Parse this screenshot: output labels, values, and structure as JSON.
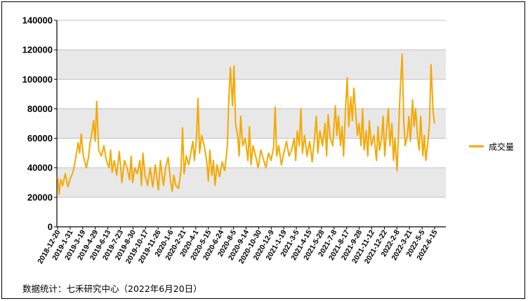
{
  "chart_data": {
    "type": "line",
    "title": "",
    "xlabel": "",
    "ylabel": "",
    "ylim": [
      0,
      140000
    ],
    "y_ticks": [
      "0",
      "20000",
      "40000",
      "60000",
      "80000",
      "100000",
      "120000",
      "140000"
    ],
    "x_tick_labels": [
      "2018-12-20",
      "2019-1-31",
      "2019-3-19",
      "2019-4-29",
      "2019-6-13",
      "2019-7-23",
      "2019-8-30",
      "2019-10-17",
      "2019-11-26",
      "2020-1-6",
      "2020-2-21",
      "2020-4-1",
      "2020-5-15",
      "2020-6-24",
      "2020-8-5",
      "2020-9-14",
      "2020-10-30",
      "2020-12-9",
      "2021-1-19",
      "2021-3-5",
      "2021-4-15",
      "2021-5-28",
      "2021-7-8",
      "2021-8-17",
      "2021-9-28",
      "2021-11-12",
      "2021-12-22",
      "2022-2-8",
      "2022-3-21",
      "2022-5-5",
      "2022-6-15"
    ],
    "grid": "horizontal",
    "background_bands": true,
    "legend_position": "right",
    "series": [
      {
        "name": "成交量",
        "color": "#F5A800",
        "values": [
          [
            0,
            34000
          ],
          [
            0.3,
            22000
          ],
          [
            0.6,
            32000
          ],
          [
            1,
            28000
          ],
          [
            1.5,
            36000
          ],
          [
            2,
            27000
          ],
          [
            2.5,
            33000
          ],
          [
            3,
            37000
          ],
          [
            3.5,
            46000
          ],
          [
            4,
            57000
          ],
          [
            4.3,
            50000
          ],
          [
            4.6,
            63000
          ],
          [
            5,
            48000
          ],
          [
            5.3,
            44000
          ],
          [
            5.6,
            40000
          ],
          [
            6,
            47000
          ],
          [
            6.3,
            57000
          ],
          [
            6.6,
            62000
          ],
          [
            7,
            72000
          ],
          [
            7.3,
            58000
          ],
          [
            7.6,
            85000
          ],
          [
            8,
            52000
          ],
          [
            8.5,
            48000
          ],
          [
            9,
            55000
          ],
          [
            9.5,
            45000
          ],
          [
            10,
            40000
          ],
          [
            10.3,
            52000
          ],
          [
            10.6,
            37000
          ],
          [
            11,
            45000
          ],
          [
            11.5,
            35000
          ],
          [
            12,
            51000
          ],
          [
            12.5,
            30000
          ],
          [
            13,
            45000
          ],
          [
            13.5,
            40000
          ],
          [
            14,
            32000
          ],
          [
            14.3,
            48000
          ],
          [
            14.6,
            30000
          ],
          [
            15,
            40000
          ],
          [
            15.5,
            36000
          ],
          [
            16,
            45000
          ],
          [
            16.3,
            28000
          ],
          [
            16.6,
            50000
          ],
          [
            17,
            35000
          ],
          [
            17.5,
            28000
          ],
          [
            18,
            40000
          ],
          [
            18.5,
            27000
          ],
          [
            19,
            42000
          ],
          [
            19.3,
            33000
          ],
          [
            19.6,
            25000
          ],
          [
            20,
            45000
          ],
          [
            20.3,
            35000
          ],
          [
            20.6,
            28000
          ],
          [
            21,
            40000
          ],
          [
            21.5,
            47000
          ],
          [
            22,
            30000
          ],
          [
            22.3,
            24000
          ],
          [
            22.6,
            35000
          ],
          [
            23,
            28000
          ],
          [
            23.5,
            26000
          ],
          [
            24,
            38000
          ],
          [
            24.3,
            67000
          ],
          [
            24.6,
            36000
          ],
          [
            25,
            48000
          ],
          [
            25.5,
            42000
          ],
          [
            26,
            52000
          ],
          [
            26.3,
            58000
          ],
          [
            26.6,
            45000
          ],
          [
            27,
            60000
          ],
          [
            27.3,
            87000
          ],
          [
            27.6,
            50000
          ],
          [
            28,
            62000
          ],
          [
            28.5,
            55000
          ],
          [
            29,
            44000
          ],
          [
            29.3,
            31000
          ],
          [
            29.6,
            52000
          ],
          [
            30,
            35000
          ],
          [
            30.3,
            45000
          ],
          [
            30.6,
            28000
          ],
          [
            31,
            42000
          ],
          [
            31.5,
            34000
          ],
          [
            32,
            44000
          ],
          [
            32.5,
            38000
          ],
          [
            33,
            55000
          ],
          [
            33.3,
            88000
          ],
          [
            33.6,
            108000
          ],
          [
            34,
            82000
          ],
          [
            34.3,
            109000
          ],
          [
            34.6,
            70000
          ],
          [
            35,
            62000
          ],
          [
            35.3,
            48000
          ],
          [
            35.6,
            75000
          ],
          [
            36,
            55000
          ],
          [
            36.5,
            60000
          ],
          [
            37,
            45000
          ],
          [
            37.3,
            68000
          ],
          [
            37.6,
            42000
          ],
          [
            38,
            55000
          ],
          [
            38.5,
            48000
          ],
          [
            39,
            40000
          ],
          [
            39.5,
            52000
          ],
          [
            40,
            46000
          ],
          [
            40.5,
            40000
          ],
          [
            41,
            50000
          ],
          [
            41.5,
            45000
          ],
          [
            42,
            54000
          ],
          [
            42.3,
            81000
          ],
          [
            42.6,
            48000
          ],
          [
            43,
            55000
          ],
          [
            43.5,
            42000
          ],
          [
            44,
            50000
          ],
          [
            44.5,
            58000
          ],
          [
            45,
            48000
          ],
          [
            45.5,
            52000
          ],
          [
            46,
            60000
          ],
          [
            46.3,
            45000
          ],
          [
            46.6,
            65000
          ],
          [
            47,
            55000
          ],
          [
            47.3,
            80000
          ],
          [
            47.6,
            50000
          ],
          [
            48,
            62000
          ],
          [
            48.5,
            48000
          ],
          [
            49,
            58000
          ],
          [
            49.5,
            44000
          ],
          [
            50,
            62000
          ],
          [
            50.3,
            75000
          ],
          [
            50.6,
            50000
          ],
          [
            51,
            65000
          ],
          [
            51.5,
            55000
          ],
          [
            52,
            70000
          ],
          [
            52.3,
            48000
          ],
          [
            52.6,
            76000
          ],
          [
            53,
            60000
          ],
          [
            53.5,
            55000
          ],
          [
            54,
            82000
          ],
          [
            54.3,
            62000
          ],
          [
            54.6,
            75000
          ],
          [
            55,
            55000
          ],
          [
            55.3,
            68000
          ],
          [
            55.6,
            48000
          ],
          [
            56,
            82000
          ],
          [
            56.3,
            101000
          ],
          [
            56.6,
            68000
          ],
          [
            57,
            88000
          ],
          [
            57.3,
            72000
          ],
          [
            57.6,
            94000
          ],
          [
            58,
            75000
          ],
          [
            58.3,
            62000
          ],
          [
            58.6,
            70000
          ],
          [
            59,
            55000
          ],
          [
            59.3,
            80000
          ],
          [
            59.6,
            52000
          ],
          [
            60,
            65000
          ],
          [
            60.3,
            48000
          ],
          [
            60.6,
            72000
          ],
          [
            61,
            55000
          ],
          [
            61.5,
            62000
          ],
          [
            62,
            45000
          ],
          [
            62.3,
            68000
          ],
          [
            62.6,
            52000
          ],
          [
            63,
            60000
          ],
          [
            63.3,
            75000
          ],
          [
            63.6,
            48000
          ],
          [
            64,
            68000
          ],
          [
            64.3,
            80000
          ],
          [
            64.6,
            55000
          ],
          [
            65,
            70000
          ],
          [
            65.3,
            45000
          ],
          [
            65.6,
            60000
          ],
          [
            66,
            38000
          ],
          [
            66.3,
            65000
          ],
          [
            66.6,
            92000
          ],
          [
            67,
            117000
          ],
          [
            67.3,
            72000
          ],
          [
            67.6,
            55000
          ],
          [
            68,
            62000
          ],
          [
            68.3,
            75000
          ],
          [
            68.6,
            58000
          ],
          [
            69,
            86000
          ],
          [
            69.3,
            68000
          ],
          [
            69.6,
            80000
          ],
          [
            70,
            60000
          ],
          [
            70.3,
            52000
          ],
          [
            70.6,
            75000
          ],
          [
            71,
            48000
          ],
          [
            71.3,
            62000
          ],
          [
            71.6,
            45000
          ],
          [
            72,
            58000
          ],
          [
            72.3,
            70000
          ],
          [
            72.6,
            110000
          ],
          [
            73,
            78000
          ],
          [
            73.3,
            70000
          ]
        ]
      }
    ]
  },
  "legend": {
    "label": "成交量"
  },
  "footer": {
    "source": "数据统计：七禾研究中心（2022年6月20日）"
  }
}
